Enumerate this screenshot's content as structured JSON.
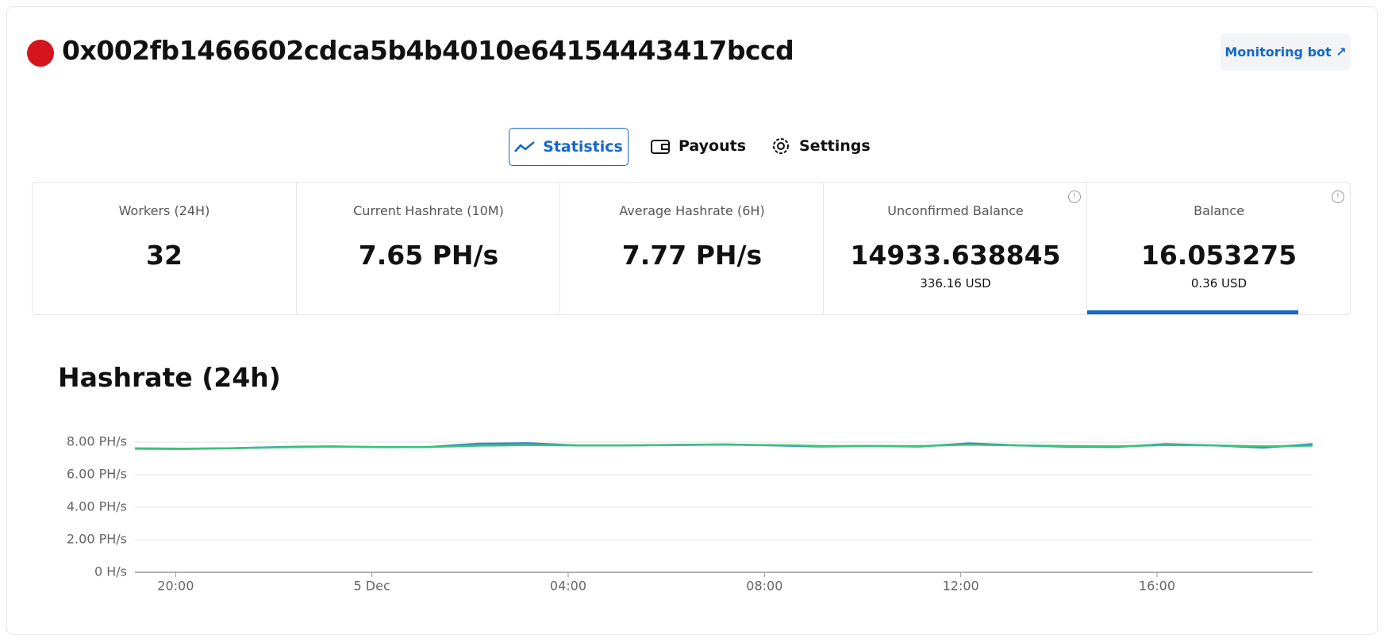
{
  "header": {
    "address": "0x002fb1466602cdca5b4b4010e64154443417bccd",
    "button": "Monitoring bot"
  },
  "tabs": [
    "Statistics",
    "Payouts",
    "Settings"
  ],
  "stats": [
    {
      "label": "Workers (24H)",
      "value": "32"
    },
    {
      "label": "Current Hashrate (10M)",
      "value": "7.65 PH/s"
    },
    {
      "label": "Average Hashrate (6H)",
      "value": "7.77 PH/s"
    },
    {
      "label": "Unconfirmed Balance",
      "value": "14933.638845",
      "sub": "336.16 USD"
    },
    {
      "label": "Balance",
      "value": "16.053275",
      "sub": "0.36 USD"
    }
  ],
  "chart_data": {
    "type": "line",
    "title": "Hashrate (24h)",
    "x": [
      -4.83,
      -3.83,
      -2.83,
      -1.83,
      -0.83,
      0.17,
      1.17,
      2.17,
      3.17,
      4.17,
      5.17,
      6.17,
      7.17,
      8.17,
      9.17,
      10.17,
      11.17,
      12.17,
      13.17,
      14.17,
      15.17,
      16.17,
      17.17,
      18.17,
      19.17
    ],
    "series": [
      {
        "color": "#3a86c8",
        "values": [
          7.6,
          7.58,
          7.63,
          7.7,
          7.74,
          7.69,
          7.7,
          7.9,
          7.93,
          7.8,
          7.8,
          7.83,
          7.86,
          7.8,
          7.73,
          7.76,
          7.73,
          7.92,
          7.8,
          7.72,
          7.7,
          7.88,
          7.8,
          7.66,
          7.88
        ]
      },
      {
        "color": "#3dc27c",
        "values": [
          7.62,
          7.6,
          7.62,
          7.68,
          7.72,
          7.7,
          7.7,
          7.78,
          7.82,
          7.8,
          7.8,
          7.82,
          7.84,
          7.82,
          7.76,
          7.76,
          7.76,
          7.84,
          7.8,
          7.76,
          7.74,
          7.82,
          7.8,
          7.74,
          7.78
        ]
      }
    ],
    "xlim": [
      -4.83,
      19.17
    ],
    "xticks": [
      {
        "value": -4,
        "label": "20:00"
      },
      {
        "value": 0,
        "label": "5 Dec"
      },
      {
        "value": 4,
        "label": "04:00"
      },
      {
        "value": 8,
        "label": "08:00"
      },
      {
        "value": 12,
        "label": "12:00"
      },
      {
        "value": 16,
        "label": "16:00"
      }
    ],
    "ylim": [
      0,
      8
    ],
    "yticks": [
      {
        "value": 0,
        "label": "0 H/s"
      },
      {
        "value": 2,
        "label": "2.00 PH/s"
      },
      {
        "value": 4,
        "label": "4.00 PH/s"
      },
      {
        "value": 6,
        "label": "6.00 PH/s"
      },
      {
        "value": 8,
        "label": "8.00 PH/s"
      }
    ],
    "grid": true
  }
}
